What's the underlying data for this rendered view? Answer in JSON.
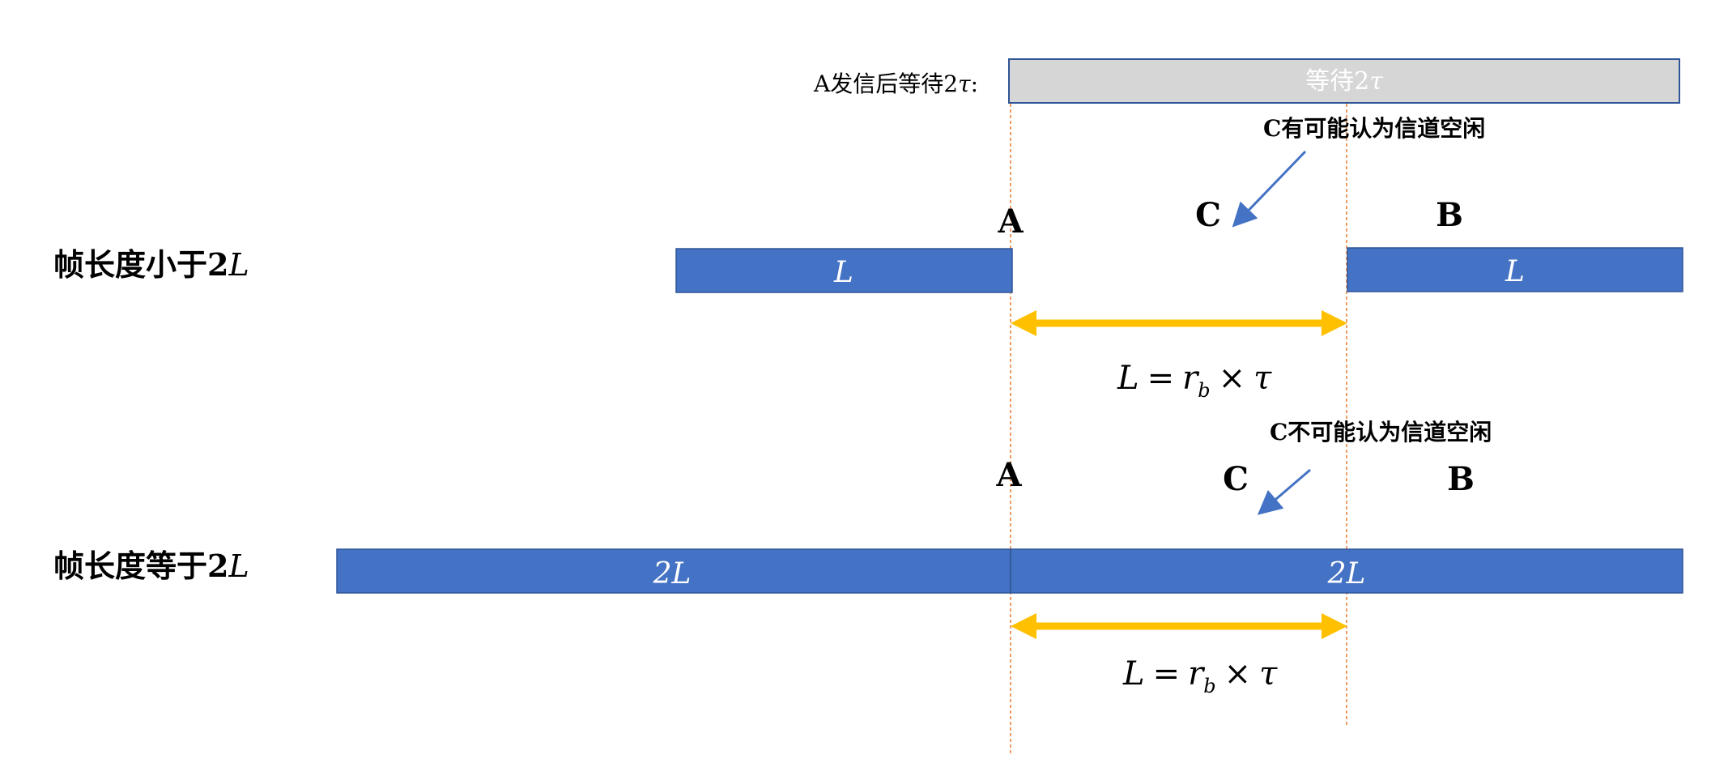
{
  "wait": {
    "prefix": "A发信后等待2",
    "prefix_symbol": "τ",
    "prefix_suffix": ":",
    "bar_text": "等待2",
    "bar_symbol": "τ",
    "bar_fill": "#d6d6d6",
    "bar_stroke": "#2f5597"
  },
  "top": {
    "row_label": "帧长度小于2",
    "row_label_var": "L",
    "note": "C有可能认为信道空闲",
    "station_a": "A",
    "station_b": "B",
    "station_c": "C",
    "left_frame": "L",
    "right_frame": "L",
    "formula": {
      "lhs": "L",
      "eq": "=",
      "r": "r",
      "sub": "b",
      "times": "×",
      "tau": "τ"
    }
  },
  "bottom": {
    "row_label": "帧长度等于2",
    "row_label_var": "L",
    "note": "C不可能认为信道空闲",
    "station_a": "A",
    "station_b": "B",
    "station_c": "C",
    "left_frame": "2L",
    "right_frame": "2L",
    "formula": {
      "lhs": "L",
      "eq": "=",
      "r": "r",
      "sub": "b",
      "times": "×",
      "tau": "τ"
    }
  },
  "colors": {
    "frame": "#4472c4",
    "frame_text": "#ffffff",
    "arrow": "#ffc000",
    "pointer": "#4472c4",
    "guide": "#ed7d31",
    "text": "#000000"
  }
}
